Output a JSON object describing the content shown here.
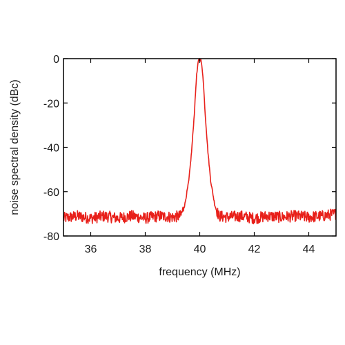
{
  "chart_data": {
    "type": "line",
    "title": "",
    "xlabel": "frequency (MHz)",
    "ylabel": "noise spectral density (dBc)",
    "xlim": [
      35,
      45
    ],
    "ylim": [
      -80,
      0
    ],
    "x_ticks": [
      36,
      38,
      40,
      42,
      44
    ],
    "y_ticks": [
      0,
      -20,
      -40,
      -60,
      -80
    ],
    "grid": false,
    "legend": "none",
    "series": [
      {
        "color": "#e8201a",
        "noise_floor_dbc": -72,
        "peak": {
          "x": 40.0,
          "y": 0
        },
        "points": [
          [
            35.0,
            -72
          ],
          [
            35.5,
            -71
          ],
          [
            36.0,
            -72
          ],
          [
            36.5,
            -71
          ],
          [
            37.0,
            -72
          ],
          [
            37.5,
            -71
          ],
          [
            38.0,
            -72
          ],
          [
            38.5,
            -71
          ],
          [
            39.0,
            -71.5
          ],
          [
            39.3,
            -71
          ],
          [
            39.45,
            -66
          ],
          [
            39.6,
            -55
          ],
          [
            39.7,
            -42
          ],
          [
            39.8,
            -25
          ],
          [
            39.88,
            -8
          ],
          [
            39.95,
            -1
          ],
          [
            40.0,
            0
          ],
          [
            40.05,
            -1
          ],
          [
            40.12,
            -8
          ],
          [
            40.2,
            -25
          ],
          [
            40.3,
            -42
          ],
          [
            40.4,
            -55
          ],
          [
            40.55,
            -66
          ],
          [
            40.7,
            -71
          ],
          [
            41.0,
            -71.5
          ],
          [
            41.5,
            -71
          ],
          [
            42.0,
            -72
          ],
          [
            42.5,
            -71
          ],
          [
            43.0,
            -71.5
          ],
          [
            43.5,
            -71
          ],
          [
            44.0,
            -71.5
          ],
          [
            44.5,
            -71
          ],
          [
            45.0,
            -70
          ]
        ]
      }
    ]
  }
}
